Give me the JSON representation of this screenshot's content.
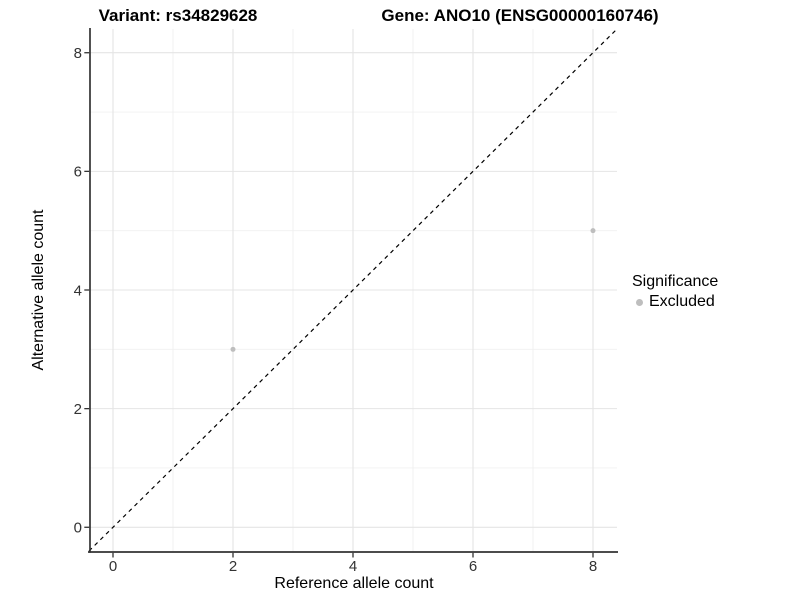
{
  "chart_data": {
    "type": "scatter",
    "titles": {
      "left": "Variant: rs34829628",
      "right": "Gene: ANO10 (ENSG00000160746)"
    },
    "xlabel": "Reference allele count",
    "ylabel": "Alternative allele count",
    "xlim": [
      -0.4,
      8.4
    ],
    "ylim": [
      -0.4,
      8.4
    ],
    "x_major_ticks": [
      0,
      2,
      4,
      6,
      8
    ],
    "y_major_ticks": [
      0,
      2,
      4,
      6,
      8
    ],
    "x_minor_ticks": [
      1,
      3,
      5,
      7
    ],
    "y_minor_ticks": [
      1,
      3,
      5,
      7
    ],
    "grid": true,
    "identity_line": {
      "equation": "y = x",
      "style": "dashed",
      "color": "#000000"
    },
    "series": [
      {
        "name": "Excluded",
        "color": "#bebebe",
        "points": [
          {
            "x": 2,
            "y": 3
          },
          {
            "x": 8,
            "y": 5
          }
        ]
      }
    ],
    "legend": {
      "title": "Significance",
      "position": "right",
      "items": [
        {
          "label": "Excluded",
          "color": "#bebebe"
        }
      ]
    }
  },
  "colors": {
    "background": "#ffffff",
    "grid_major": "#e4e4e4",
    "grid_minor": "#f0f0f0",
    "axis_line": "#333333",
    "tick_label": "#333333",
    "point": "#bebebe",
    "dashed_line": "#000000"
  }
}
